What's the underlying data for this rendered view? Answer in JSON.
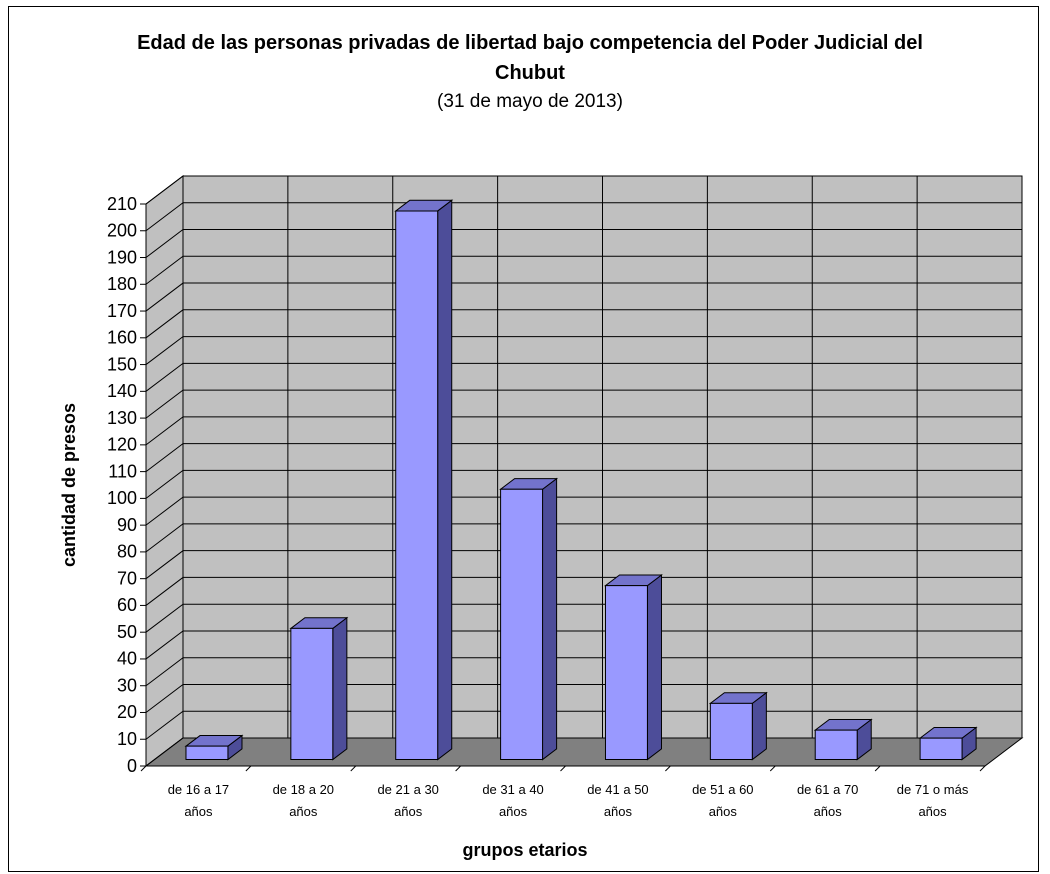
{
  "chart_data": {
    "type": "bar3d",
    "title": "Edad de las personas privadas de libertad bajo competencia del Poder Judicial del Chubut",
    "subtitle": "(31 de mayo de 2013)",
    "x_label": "grupos etarios",
    "y_label": "cantidad de presos",
    "categories": [
      "de 16 a 17 años",
      "de 18 a 20 años",
      "de 21 a 30 años",
      "de 31 a 40 años",
      "de 41 a 50 años",
      "de 51 a 60 años",
      "de 61 a 70 años",
      "de 71 o más años"
    ],
    "values": [
      5,
      49,
      205,
      101,
      65,
      21,
      11,
      8
    ],
    "color": "#9999ff",
    "ylim": [
      0,
      210
    ],
    "yticks": [
      0,
      10,
      20,
      30,
      40,
      50,
      60,
      70,
      80,
      90,
      100,
      110,
      120,
      130,
      140,
      150,
      160,
      170,
      180,
      190,
      200,
      210
    ],
    "grid": true
  }
}
